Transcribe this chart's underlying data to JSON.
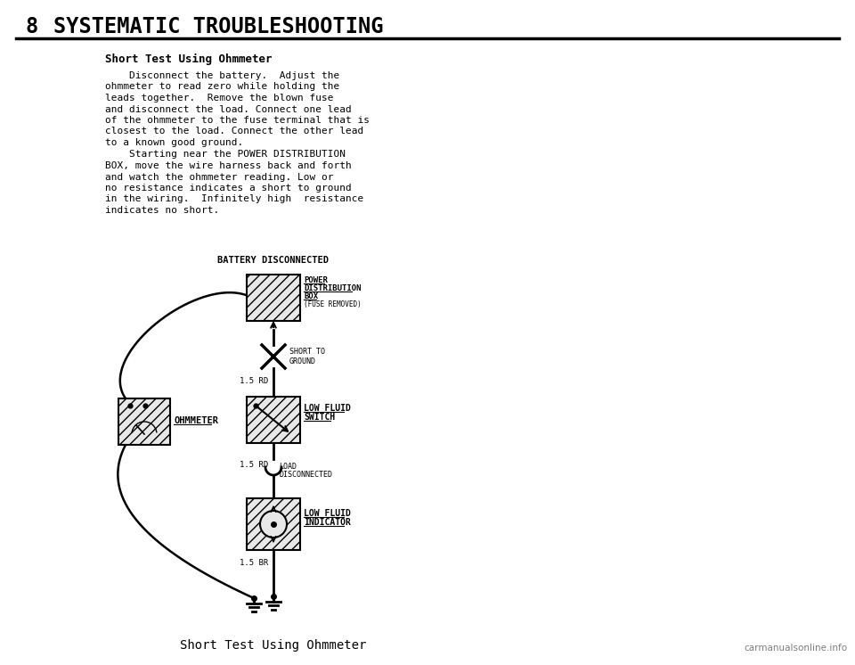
{
  "page_number": "8",
  "page_title": "SYSTEMATIC TROUBLESHOOTING",
  "section_title": "Short Test Using Ohmmeter",
  "para1_lines": [
    "    Disconnect the battery.  Adjust the",
    "ohmmeter to read zero while holding the",
    "leads together.  Remove the blown fuse",
    "and disconnect the load. Connect one lead",
    "of the ohmmeter to the fuse terminal that is",
    "closest to the load. Connect the other lead",
    "to a known good ground."
  ],
  "para2_lines": [
    "    Starting near the POWER DISTRIBUTION",
    "BOX, move the wire harness back and forth",
    "and watch the ohmmeter reading. Low or",
    "no resistance indicates a short to ground",
    "in the wiring.  Infinitely high  resistance",
    "indicates no short."
  ],
  "diagram_label": "BATTERY DISCONNECTED",
  "pdb_labels": [
    "POWER",
    "DISTRIBUTION",
    "BOX",
    "(FUSE REMOVED)"
  ],
  "short_to_ground": [
    "SHORT TO",
    "GROUND"
  ],
  "wire_label1": "1.5 RD",
  "ohmmeter_label": "OHMMETER",
  "lfs_labels": [
    "LOW FLUID",
    "SWITCH"
  ],
  "wire_label2": "1.5 RD",
  "load_disconnected": [
    "LOAD",
    "DISCONNECTED"
  ],
  "lfi_labels": [
    "LOW FLUID",
    "INDICATOR"
  ],
  "wire_label3": "1.5 BR",
  "bottom_caption": "Short Test Using Ohmmeter",
  "watermark": "carmanualsonline.info",
  "bg_color": "#ffffff",
  "text_color": "#000000"
}
